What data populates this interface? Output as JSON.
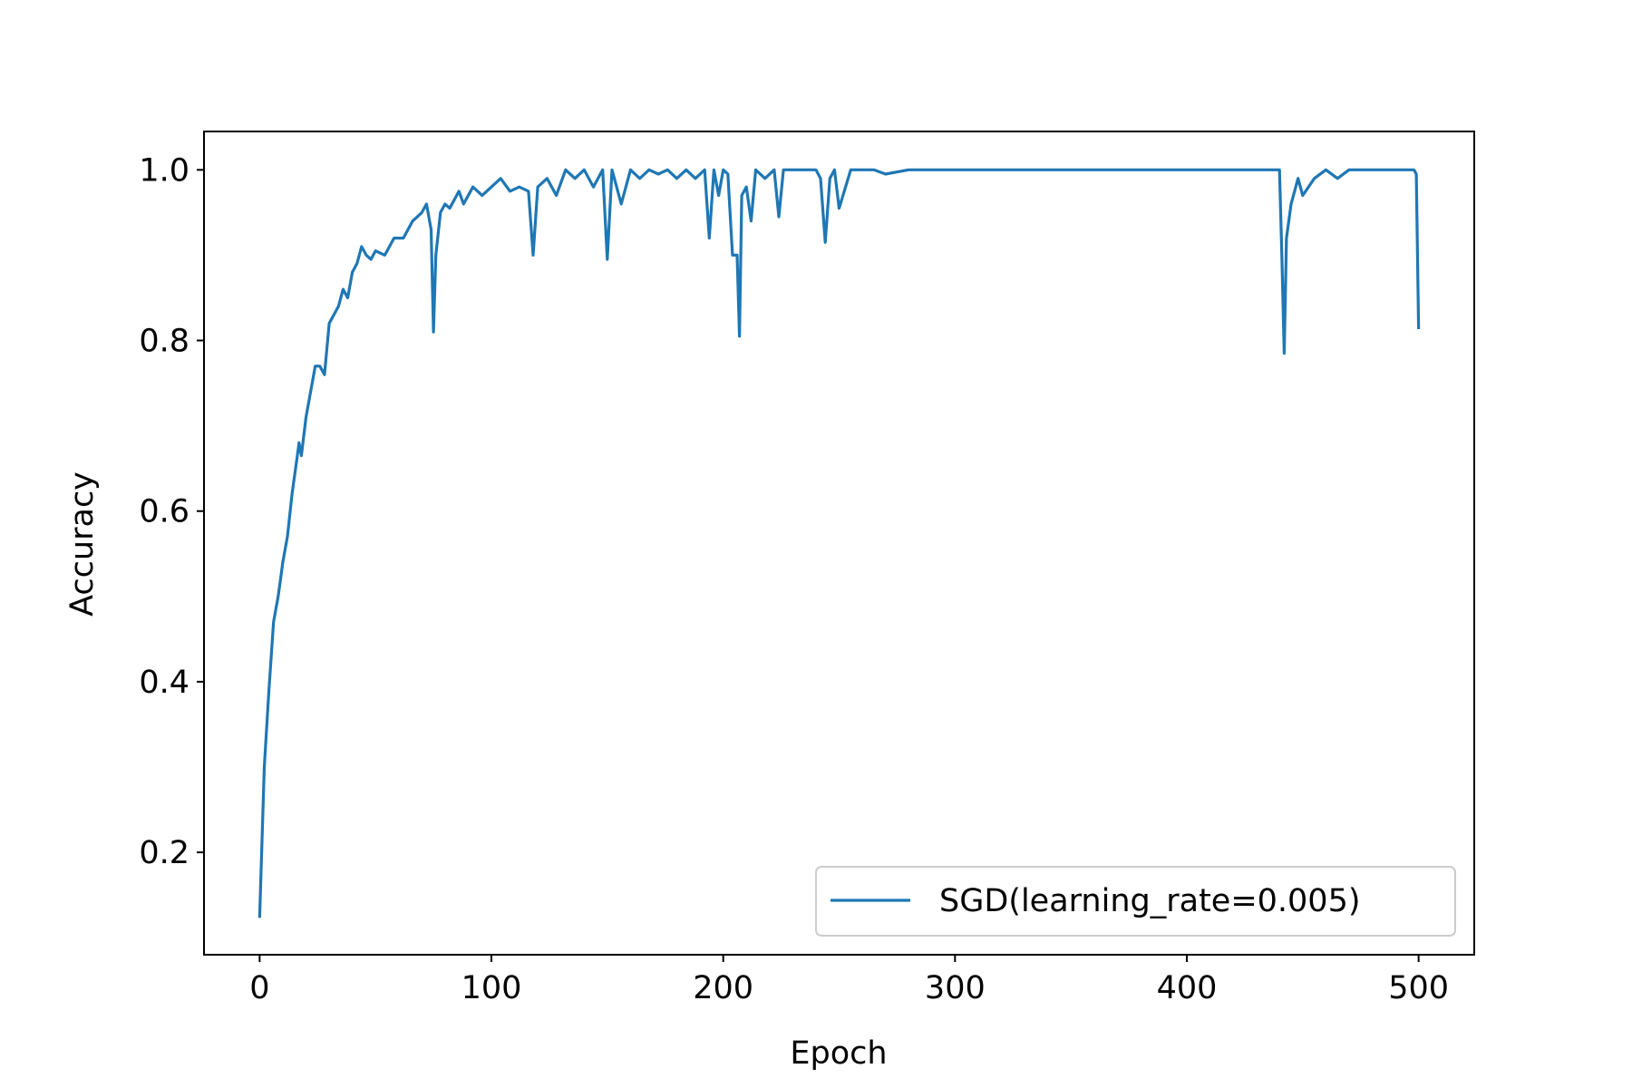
{
  "colors": {
    "series": "#1f77b4",
    "axes": "#000000",
    "background": "#ffffff",
    "legend_border": "#cccccc"
  },
  "chart_data": {
    "type": "line",
    "title": "",
    "xlabel": "Epoch",
    "ylabel": "Accuracy",
    "xlim": [
      -24,
      524
    ],
    "ylim": [
      0.08,
      1.045
    ],
    "xticks": [
      0,
      100,
      200,
      300,
      400,
      500
    ],
    "xtick_labels": [
      "0",
      "100",
      "200",
      "300",
      "400",
      "500"
    ],
    "yticks": [
      0.2,
      0.4,
      0.6,
      0.8,
      1.0
    ],
    "ytick_labels": [
      "0.2",
      "0.4",
      "0.6",
      "0.8",
      "1.0"
    ],
    "grid": false,
    "legend_position": "lower-right",
    "series": [
      {
        "name": "SGD(learning_rate=0.005)",
        "x": [
          0,
          2,
          4,
          6,
          8,
          9,
          10,
          12,
          14,
          16,
          17,
          18,
          20,
          22,
          24,
          26,
          28,
          30,
          32,
          34,
          36,
          38,
          40,
          42,
          44,
          46,
          48,
          50,
          54,
          58,
          62,
          66,
          70,
          72,
          74,
          75,
          76,
          78,
          80,
          82,
          86,
          88,
          92,
          96,
          100,
          104,
          108,
          112,
          116,
          118,
          120,
          124,
          128,
          132,
          136,
          140,
          144,
          148,
          150,
          152,
          156,
          160,
          164,
          168,
          172,
          176,
          180,
          184,
          188,
          192,
          194,
          196,
          198,
          200,
          202,
          204,
          206,
          207,
          208,
          210,
          212,
          214,
          218,
          222,
          224,
          226,
          230,
          234,
          240,
          242,
          244,
          246,
          248,
          250,
          255,
          260,
          265,
          270,
          280,
          290,
          300,
          350,
          400,
          440,
          441,
          442,
          443,
          445,
          448,
          450,
          455,
          460,
          465,
          470,
          480,
          490,
          496,
          498,
          499,
          500
        ],
        "y": [
          0.125,
          0.3,
          0.39,
          0.47,
          0.5,
          0.52,
          0.54,
          0.57,
          0.62,
          0.66,
          0.68,
          0.665,
          0.71,
          0.74,
          0.77,
          0.77,
          0.76,
          0.82,
          0.83,
          0.84,
          0.86,
          0.85,
          0.88,
          0.89,
          0.91,
          0.9,
          0.895,
          0.905,
          0.9,
          0.92,
          0.92,
          0.94,
          0.95,
          0.96,
          0.93,
          0.81,
          0.9,
          0.95,
          0.96,
          0.955,
          0.975,
          0.96,
          0.98,
          0.97,
          0.98,
          0.99,
          0.975,
          0.98,
          0.975,
          0.9,
          0.98,
          0.99,
          0.97,
          1.0,
          0.99,
          1.0,
          0.98,
          1.0,
          0.895,
          1.0,
          0.96,
          1.0,
          0.99,
          1.0,
          0.995,
          1.0,
          0.99,
          1.0,
          0.99,
          1.0,
          0.92,
          1.0,
          0.97,
          1.0,
          0.995,
          0.9,
          0.9,
          0.805,
          0.97,
          0.98,
          0.94,
          1.0,
          0.99,
          1.0,
          0.945,
          1.0,
          1.0,
          1.0,
          1.0,
          0.99,
          0.915,
          0.99,
          1.0,
          0.955,
          1.0,
          1.0,
          1.0,
          0.995,
          1.0,
          1.0,
          1.0,
          1.0,
          1.0,
          1.0,
          0.9,
          0.785,
          0.92,
          0.96,
          0.99,
          0.97,
          0.99,
          1.0,
          0.99,
          1.0,
          1.0,
          1.0,
          1.0,
          1.0,
          0.995,
          0.815
        ]
      }
    ]
  }
}
